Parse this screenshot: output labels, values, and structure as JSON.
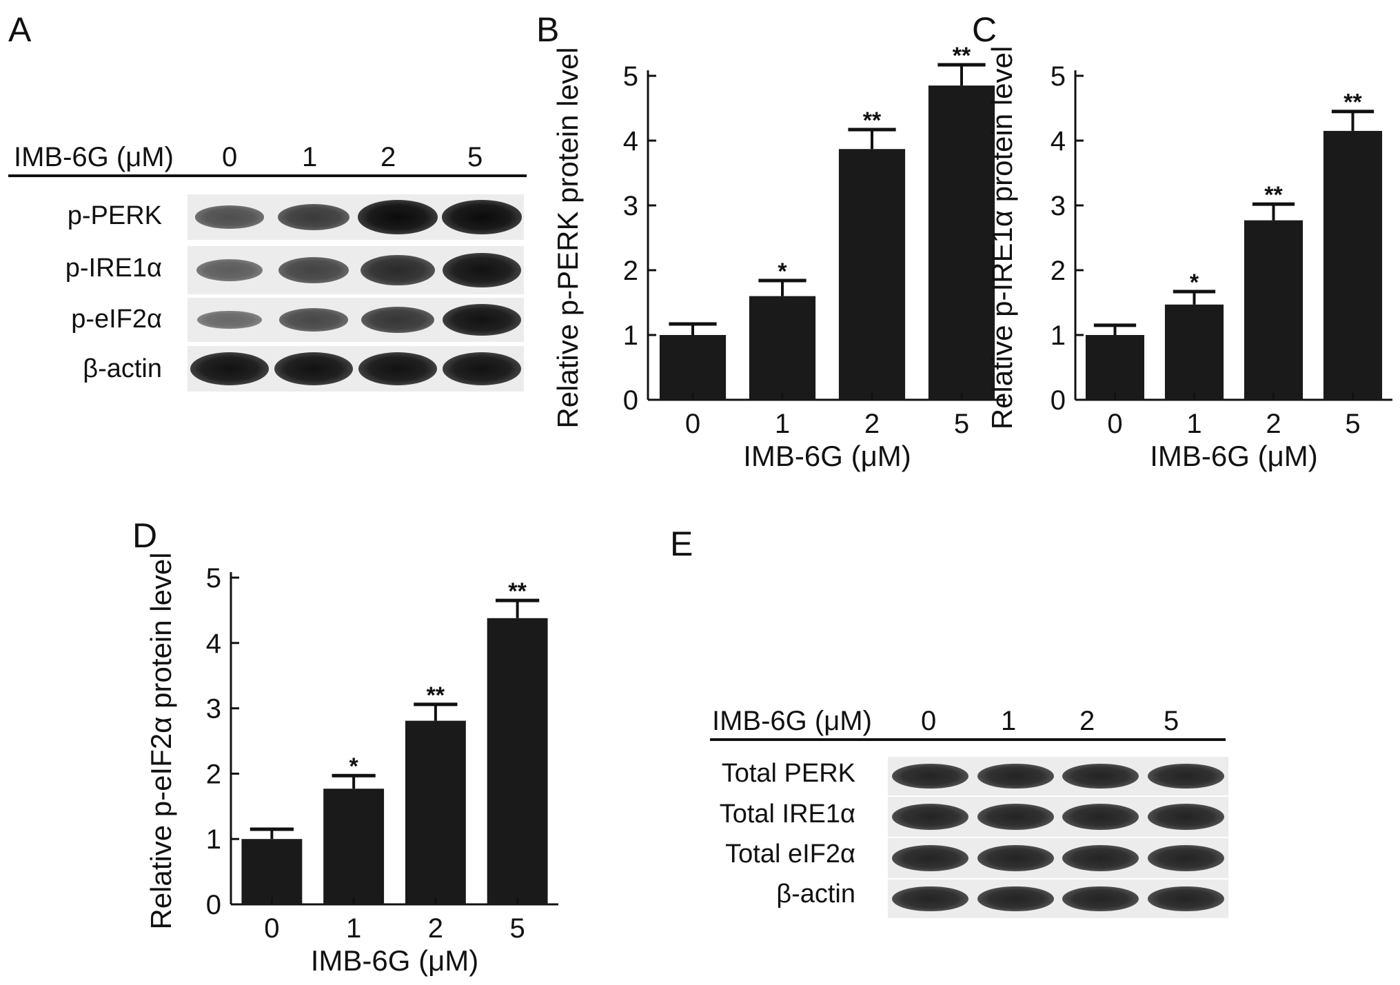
{
  "panels": {
    "A": {
      "letter": "A",
      "header_label": "IMB-6G (μM)",
      "doses": [
        "0",
        "1",
        "2",
        "5"
      ],
      "rows": [
        {
          "label": "p-PERK",
          "intensity": [
            0.45,
            0.62,
            1.0,
            1.0
          ]
        },
        {
          "label": "p-IRE1α",
          "intensity": [
            0.35,
            0.55,
            0.75,
            0.95
          ]
        },
        {
          "label": "p-eIF2α",
          "intensity": [
            0.25,
            0.5,
            0.65,
            0.95
          ]
        },
        {
          "label": "β-actin",
          "intensity": [
            0.95,
            0.95,
            0.95,
            0.95
          ]
        }
      ]
    },
    "E": {
      "letter": "E",
      "header_label": "IMB-6G (μM)",
      "doses": [
        "0",
        "1",
        "2",
        "5"
      ],
      "rows": [
        {
          "label": "Total PERK",
          "intensity": [
            0.8,
            0.8,
            0.8,
            0.8
          ]
        },
        {
          "label": "Total IRE1α",
          "intensity": [
            0.8,
            0.8,
            0.8,
            0.8
          ]
        },
        {
          "label": "Total eIF2α",
          "intensity": [
            0.8,
            0.8,
            0.8,
            0.8
          ]
        },
        {
          "label": "β-actin",
          "intensity": [
            0.8,
            0.8,
            0.8,
            0.8
          ]
        }
      ]
    }
  },
  "chart_data": [
    {
      "panel": "B",
      "type": "bar",
      "categories": [
        "0",
        "1",
        "2",
        "5"
      ],
      "values": [
        1.0,
        1.6,
        3.87,
        4.85
      ],
      "errors": [
        0.17,
        0.24,
        0.3,
        0.32
      ],
      "significance": [
        "",
        "*",
        "**",
        "**"
      ],
      "xlabel": "IMB-6G (μM)",
      "ylabel": "Relative p-PERK protein level",
      "ylim": [
        0,
        5
      ],
      "yticks": [
        0,
        1,
        2,
        3,
        4,
        5
      ],
      "bar_color": "#1a1a1a"
    },
    {
      "panel": "C",
      "type": "bar",
      "categories": [
        "0",
        "1",
        "2",
        "5"
      ],
      "values": [
        1.0,
        1.47,
        2.77,
        4.15
      ],
      "errors": [
        0.15,
        0.2,
        0.25,
        0.3
      ],
      "significance": [
        "",
        "*",
        "**",
        "**"
      ],
      "xlabel": "IMB-6G (μM)",
      "ylabel": "Relative p-IRE1α protein level",
      "ylim": [
        0,
        5
      ],
      "yticks": [
        0,
        1,
        2,
        3,
        4,
        5
      ],
      "bar_color": "#1a1a1a"
    },
    {
      "panel": "D",
      "type": "bar",
      "categories": [
        "0",
        "1",
        "2",
        "5"
      ],
      "values": [
        1.0,
        1.77,
        2.81,
        4.38
      ],
      "errors": [
        0.15,
        0.2,
        0.25,
        0.27
      ],
      "significance": [
        "",
        "*",
        "**",
        "**"
      ],
      "xlabel": "IMB-6G (μM)",
      "ylabel": "Relative p-eIF2α protein level",
      "ylim": [
        0,
        5
      ],
      "yticks": [
        0,
        1,
        2,
        3,
        4,
        5
      ],
      "bar_color": "#1a1a1a"
    }
  ]
}
